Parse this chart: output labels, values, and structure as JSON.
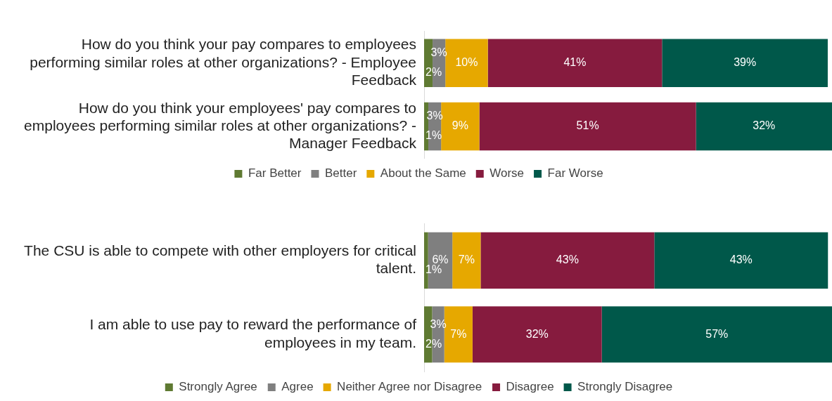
{
  "chart_data": [
    {
      "type": "bar",
      "orientation": "horizontal",
      "stacked": true,
      "legend": "bottom",
      "categories": [
        "How do you think your pay compares to employees performing similar roles at other organizations? - Employee Feedback",
        "How do you think your employees' pay compares to employees performing similar roles at other organizations? - Manager Feedback"
      ],
      "series": [
        {
          "name": "Far Better",
          "color": "#5f7a32",
          "values": [
            2,
            1
          ],
          "value_labels": [
            "2%",
            "1%"
          ]
        },
        {
          "name": "Better",
          "color": "#7f7f7f",
          "values": [
            3,
            3
          ],
          "value_labels": [
            "3%",
            "3%"
          ]
        },
        {
          "name": "About the Same",
          "color": "#e6a800",
          "values": [
            10,
            9
          ],
          "value_labels": [
            "10%",
            "9%"
          ]
        },
        {
          "name": "Worse",
          "color": "#861b3e",
          "values": [
            41,
            51
          ],
          "value_labels": [
            "41%",
            "51%"
          ]
        },
        {
          "name": "Far Worse",
          "color": "#00584a",
          "values": [
            39,
            32
          ],
          "value_labels": [
            "39%",
            "32%"
          ]
        }
      ]
    },
    {
      "type": "bar",
      "orientation": "horizontal",
      "stacked": true,
      "legend": "bottom",
      "categories": [
        "The CSU is able to compete with other employers for critical talent.",
        "I am able to use pay to reward the performance of employees in my team."
      ],
      "series": [
        {
          "name": "Strongly Agree",
          "color": "#5f7a32",
          "values": [
            1,
            2
          ],
          "value_labels": [
            "1%",
            "2%"
          ]
        },
        {
          "name": "Agree",
          "color": "#7f7f7f",
          "values": [
            6,
            3
          ],
          "value_labels": [
            "6%",
            "3%"
          ]
        },
        {
          "name": "Neither Agree nor Disagree",
          "color": "#e6a800",
          "values": [
            7,
            7
          ],
          "value_labels": [
            "7%",
            "7%"
          ]
        },
        {
          "name": "Disagree",
          "color": "#861b3e",
          "values": [
            43,
            32
          ],
          "value_labels": [
            "43%",
            "32%"
          ]
        },
        {
          "name": "Strongly Disagree",
          "color": "#00584a",
          "values": [
            43,
            57
          ],
          "value_labels": [
            "43%",
            "57%"
          ]
        }
      ]
    }
  ]
}
